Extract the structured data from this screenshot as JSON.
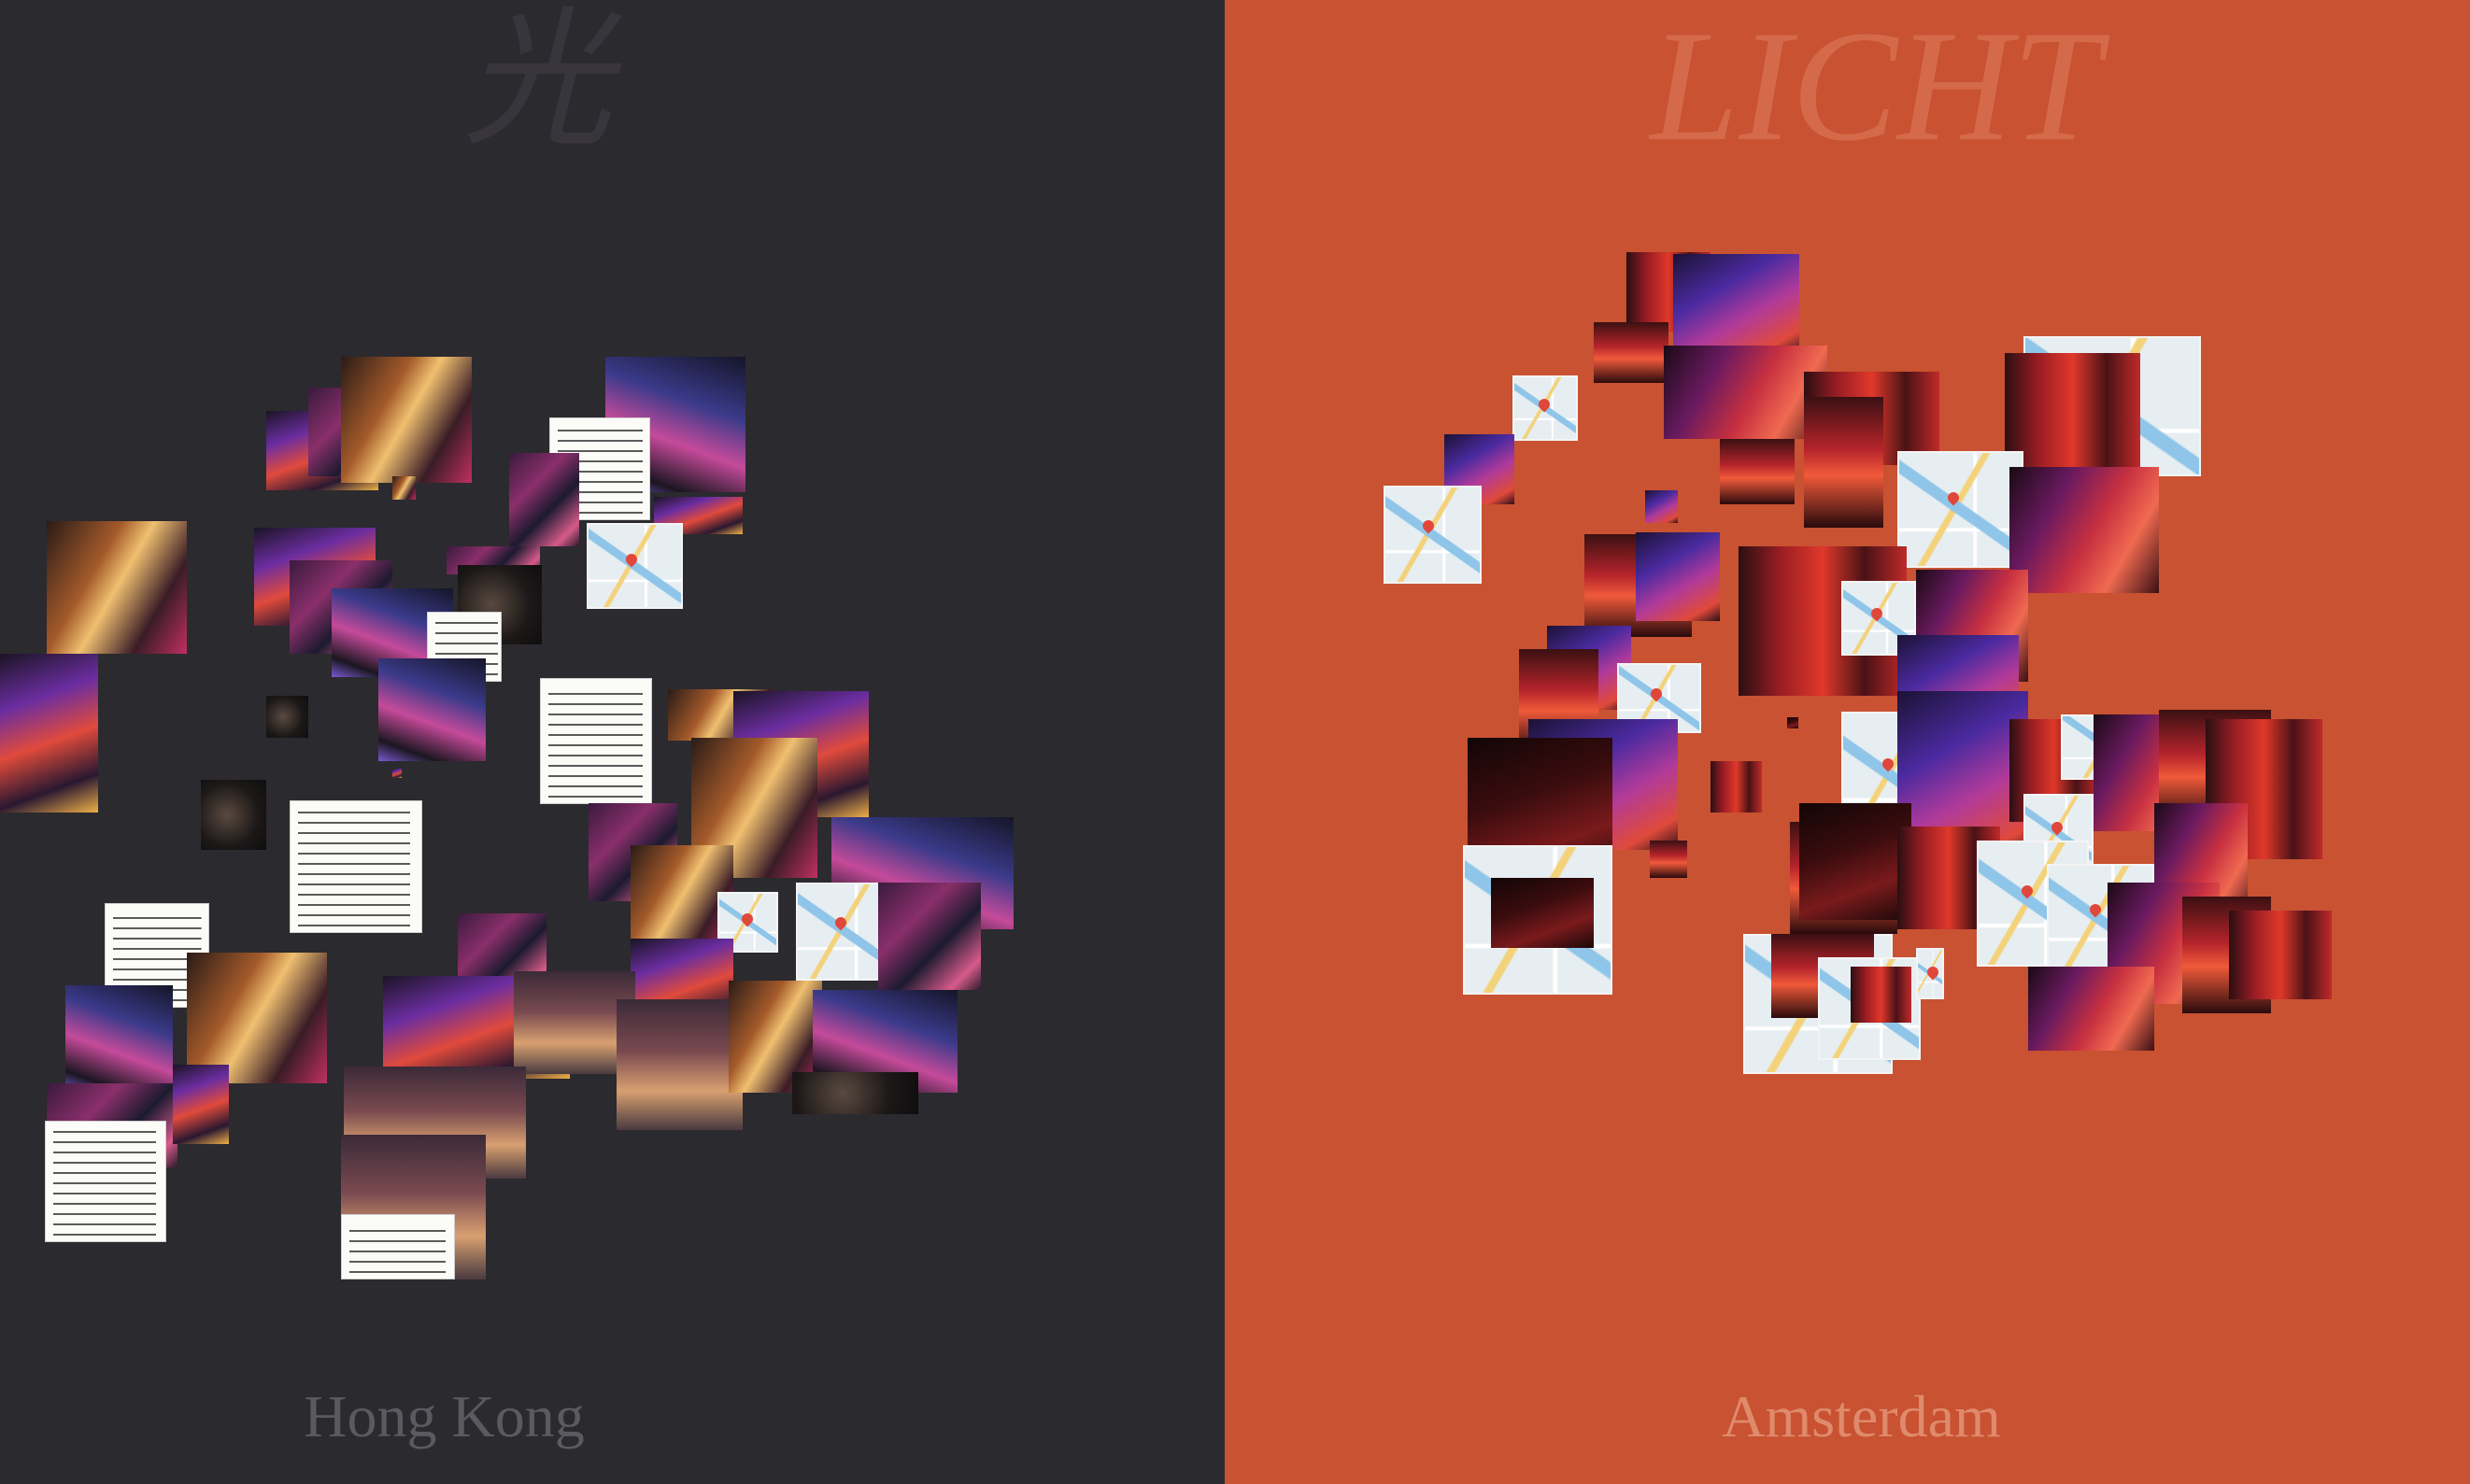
{
  "panels": {
    "left": {
      "big_title": "光",
      "city_label": "Hong Kong",
      "background": "#2b2a2e"
    },
    "right": {
      "big_title": "LICHT",
      "city_label": "Amsterdam",
      "background": "#c85232"
    }
  },
  "collage_tiles": {
    "hong_kong": {
      "count": 48,
      "kinds": [
        "neon-photo",
        "street-photo",
        "map-screenshot",
        "text-document"
      ]
    },
    "amsterdam": {
      "count": 56,
      "kinds": [
        "red-light-photo",
        "map-screenshot"
      ]
    }
  },
  "colors": {
    "hk_title": "#38363c",
    "hk_city": "#5b5a60",
    "am_title": "#d56a4b",
    "am_city": "#e08a6c"
  }
}
